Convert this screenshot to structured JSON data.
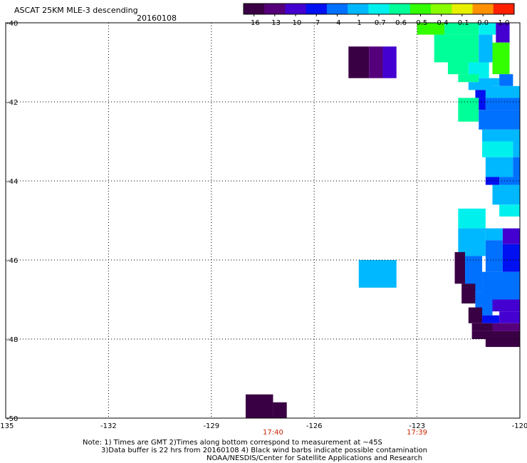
{
  "header": {
    "title": "ASCAT 25KM MLE-3 descending",
    "date": "20160108"
  },
  "colors": {
    "time_label": "#cc2200",
    "grid": "#000000",
    "background": "#ffffff"
  },
  "colorbar": {
    "tick_labels": [
      "-16",
      "-13",
      "-10",
      "-7",
      "-4",
      "-1",
      "-0.7",
      "-0.6",
      "-0.5",
      "-0.4",
      "-0.1",
      "0.0",
      "1.0"
    ],
    "colors": [
      "#3a0044",
      "#55007a",
      "#4400d0",
      "#0010f0",
      "#0070ff",
      "#00b8ff",
      "#00f0ee",
      "#00ff99",
      "#33ff00",
      "#88ff00",
      "#e6f000",
      "#ff9000",
      "#ff2000"
    ]
  },
  "notes": {
    "line1": "Note: 1) Times are GMT 2)Times along bottom correspond to measurement at ~45S",
    "line2": "3)Data buffer is 22 hrs from 20160108 4) Black wind barbs indicate possible contamination",
    "line3": "NOAA/NESDIS/Center for Satellite Applications and Research"
  },
  "chart_data": {
    "type": "heatmap",
    "title": "ASCAT 25KM MLE-3 descending",
    "subtitle": "20160108",
    "xlim": [
      -135,
      -120
    ],
    "ylim": [
      -50,
      -40
    ],
    "x_tick_labels": [
      "-135",
      "-132",
      "-129",
      "-126",
      "-123",
      "-120"
    ],
    "y_tick_labels": [
      "-40",
      "-42",
      "-44",
      "-46",
      "-48",
      "-50"
    ],
    "time_labels": [
      {
        "lon": -127.2,
        "text": "17:40"
      },
      {
        "lon": -123,
        "text": "17:39"
      }
    ],
    "grid": true,
    "note": "cells = [lon_west, lat_north, lon_east, lat_south, value]",
    "cells": [
      [
        -123.0,
        -40.0,
        -122.2,
        -40.3,
        -0.5
      ],
      [
        -122.2,
        -40.0,
        -121.2,
        -40.3,
        -0.6
      ],
      [
        -121.2,
        -40.0,
        -120.7,
        -40.3,
        -0.7
      ],
      [
        -120.7,
        -40.0,
        -120.3,
        -40.5,
        -10
      ],
      [
        -122.5,
        -40.3,
        -121.2,
        -41.0,
        -0.6
      ],
      [
        -121.2,
        -40.3,
        -120.8,
        -41.0,
        -1
      ],
      [
        -120.8,
        -40.5,
        -120.3,
        -41.3,
        -0.5
      ],
      [
        -125.0,
        -40.6,
        -124.4,
        -41.4,
        -16
      ],
      [
        -124.4,
        -40.6,
        -124.0,
        -41.4,
        -13
      ],
      [
        -124.0,
        -40.6,
        -123.6,
        -41.4,
        -10
      ],
      [
        -122.1,
        -41.0,
        -121.5,
        -41.3,
        -0.6
      ],
      [
        -121.5,
        -41.0,
        -120.9,
        -41.4,
        -0.7
      ],
      [
        -121.8,
        -41.3,
        -121.2,
        -41.5,
        -0.6
      ],
      [
        -121.2,
        -41.4,
        -120.6,
        -41.6,
        -1
      ],
      [
        -120.6,
        -41.3,
        -120.2,
        -41.6,
        -4
      ],
      [
        -121.5,
        -41.5,
        -120.8,
        -41.7,
        -1
      ],
      [
        -121.0,
        -41.6,
        -120.0,
        -41.9,
        -1
      ],
      [
        -121.3,
        -41.7,
        -121.0,
        -41.9,
        -7
      ],
      [
        -121.0,
        -41.9,
        -120.0,
        -42.2,
        -4
      ],
      [
        -121.8,
        -41.9,
        -121.2,
        -42.5,
        -0.6
      ],
      [
        -121.2,
        -41.9,
        -121.0,
        -42.2,
        -7
      ],
      [
        -121.2,
        -42.2,
        -120.0,
        -42.7,
        -4
      ],
      [
        -121.1,
        -42.7,
        -120.0,
        -43.0,
        -1
      ],
      [
        -121.1,
        -43.0,
        -120.2,
        -43.4,
        -0.7
      ],
      [
        -120.2,
        -43.0,
        -120.0,
        -43.4,
        -1
      ],
      [
        -121.0,
        -43.4,
        -120.2,
        -43.9,
        -1
      ],
      [
        -120.2,
        -43.4,
        -120.0,
        -43.9,
        -4
      ],
      [
        -121.0,
        -43.9,
        -120.6,
        -44.1,
        -7
      ],
      [
        -120.6,
        -43.9,
        -120.0,
        -44.1,
        -4
      ],
      [
        -120.8,
        -44.1,
        -120.0,
        -44.6,
        -1
      ],
      [
        -120.6,
        -44.6,
        -120.0,
        -44.9,
        -0.7
      ],
      [
        -121.8,
        -44.7,
        -121.0,
        -45.2,
        -0.7
      ],
      [
        -121.8,
        -45.2,
        -121.0,
        -45.9,
        -1
      ],
      [
        -121.0,
        -45.2,
        -120.5,
        -45.5,
        -1
      ],
      [
        -120.5,
        -45.2,
        -120.0,
        -45.6,
        -10
      ],
      [
        -121.0,
        -45.5,
        -120.5,
        -46.3,
        -4
      ],
      [
        -120.5,
        -45.6,
        -120.0,
        -46.3,
        -7
      ],
      [
        -121.9,
        -45.8,
        -121.6,
        -46.6,
        -16
      ],
      [
        -121.6,
        -45.9,
        -121.1,
        -46.8,
        -4
      ],
      [
        -121.1,
        -46.3,
        -120.0,
        -47.0,
        -4
      ],
      [
        -121.7,
        -46.6,
        -121.3,
        -47.1,
        -16
      ],
      [
        -121.3,
        -46.8,
        -120.8,
        -47.4,
        -4
      ],
      [
        -120.8,
        -47.0,
        -120.0,
        -47.3,
        -10
      ],
      [
        -121.5,
        -47.2,
        -121.1,
        -47.6,
        -16
      ],
      [
        -121.1,
        -47.4,
        -120.6,
        -47.6,
        -7
      ],
      [
        -120.6,
        -47.3,
        -120.0,
        -47.6,
        -10
      ],
      [
        -121.4,
        -47.6,
        -120.8,
        -47.8,
        -16
      ],
      [
        -120.8,
        -47.6,
        -120.0,
        -47.8,
        -13
      ],
      [
        -121.4,
        -47.8,
        -120.0,
        -48.0,
        -16
      ],
      [
        -121.0,
        -48.0,
        -120.0,
        -48.2,
        -16
      ],
      [
        -124.7,
        -46.0,
        -123.6,
        -46.7,
        -1
      ],
      [
        -128.0,
        -49.4,
        -127.2,
        -50.0,
        -16
      ],
      [
        -127.2,
        -49.6,
        -126.8,
        -50.0,
        -16
      ]
    ]
  }
}
